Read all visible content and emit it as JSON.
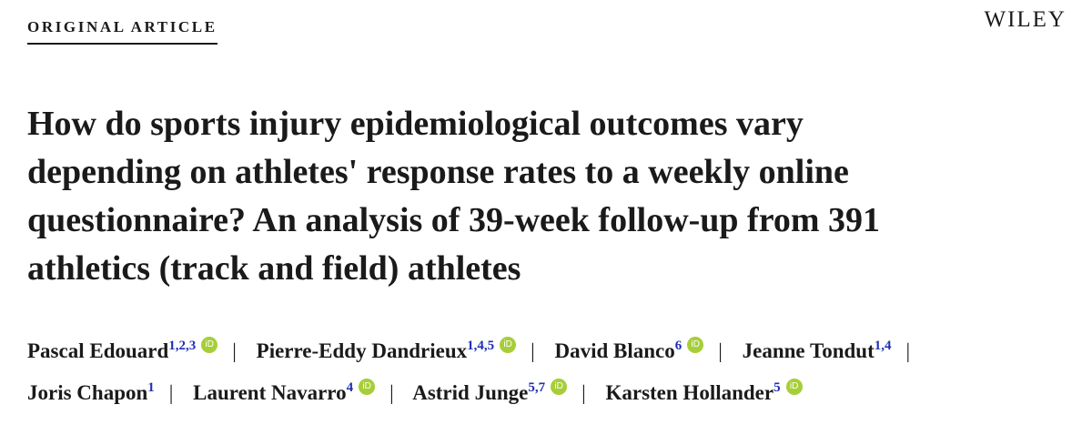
{
  "header": {
    "label": "ORIGINAL ARTICLE",
    "publisher": "WILEY"
  },
  "title": {
    "lines": [
      "How do sports injury epidemiological outcomes vary",
      "depending on athletes' response rates to a weekly online",
      "questionnaire? An analysis of 39-week follow-up from 391",
      "athletics (track and field) athletes"
    ]
  },
  "authors": {
    "separator": "|",
    "orcid_label": "iD",
    "list": [
      {
        "name": "Pascal Edouard",
        "affiliations": "1,2,3",
        "orcid": true
      },
      {
        "name": "Pierre-Eddy Dandrieux",
        "affiliations": "1,4,5",
        "orcid": true
      },
      {
        "name": "David Blanco",
        "affiliations": "6",
        "orcid": true
      },
      {
        "name": "Jeanne Tondut",
        "affiliations": "1,4",
        "orcid": false
      },
      {
        "name": "Joris Chapon",
        "affiliations": "1",
        "orcid": false
      },
      {
        "name": "Laurent Navarro",
        "affiliations": "4",
        "orcid": true
      },
      {
        "name": "Astrid Junge",
        "affiliations": "5,7",
        "orcid": true
      },
      {
        "name": "Karsten Hollander",
        "affiliations": "5",
        "orcid": true
      }
    ]
  }
}
